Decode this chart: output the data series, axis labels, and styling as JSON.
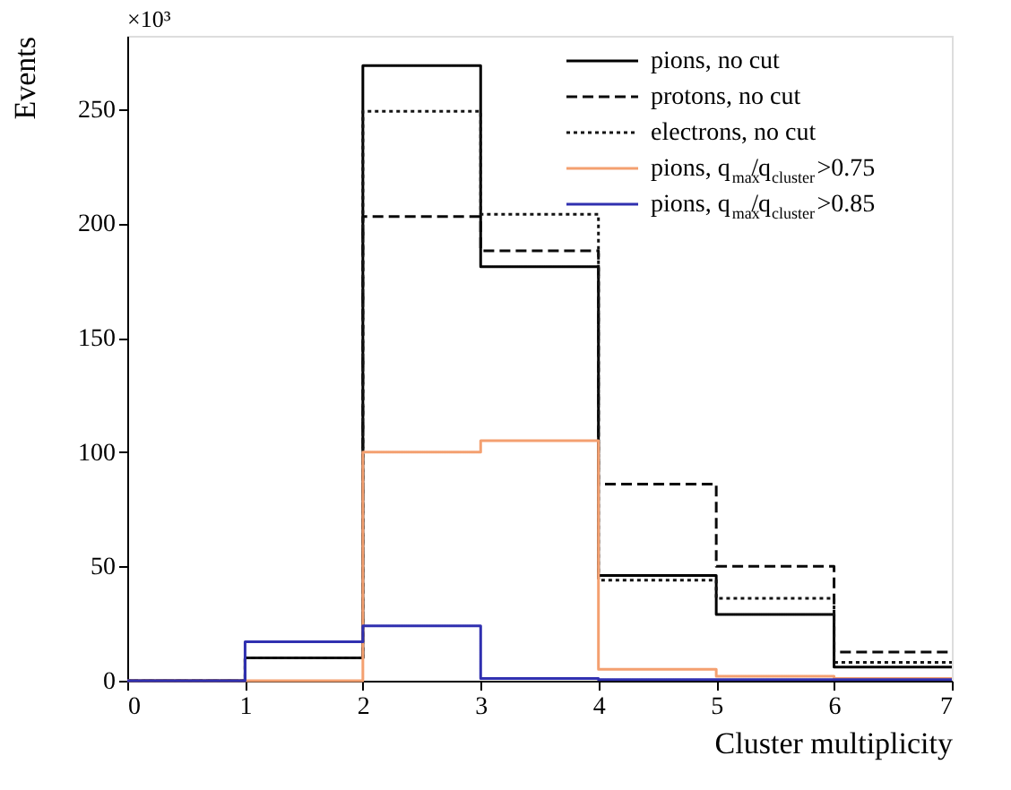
{
  "chart_data": {
    "type": "histogram",
    "xlabel": "Cluster multiplicity",
    "ylabel": "Events",
    "annotations": [
      "×10³"
    ],
    "bins": [
      0,
      1,
      2,
      3,
      4,
      5,
      6,
      7
    ],
    "series": [
      {
        "name": "pions, no cut",
        "color": "#000000",
        "line_style": "solid",
        "values": [
          0,
          10,
          269,
          181,
          46,
          29,
          6
        ]
      },
      {
        "name": "protons, no cut",
        "color": "#0a0a0a",
        "line_style": "dashed",
        "values": [
          0,
          10,
          203,
          188,
          86,
          50,
          12.5
        ]
      },
      {
        "name": "electrons, no cut",
        "color": "#141414",
        "line_style": "dotted",
        "values": [
          0,
          10,
          249,
          204,
          44,
          36,
          8
        ]
      },
      {
        "name": "pions, q$_{max}$/q$_{cluster}$>0.75",
        "color": "#f4a070",
        "line_style": "solid",
        "values": [
          0,
          0,
          100,
          105,
          5,
          2,
          1
        ]
      },
      {
        "name": "pions, q$_{max}$/q$_{cluster}$>0.85",
        "color": "#3030b0",
        "line_style": "solid",
        "values": [
          0,
          17,
          24,
          1,
          0.5,
          0.5,
          0.5
        ]
      }
    ],
    "xlim": [
      0,
      7
    ],
    "xticks": [
      0,
      1,
      2,
      3,
      4,
      5,
      6,
      7
    ],
    "ylim": [
      0,
      282
    ],
    "yticks": [
      0,
      50,
      100,
      150,
      200,
      250
    ],
    "grid": false,
    "legend": "top right"
  }
}
